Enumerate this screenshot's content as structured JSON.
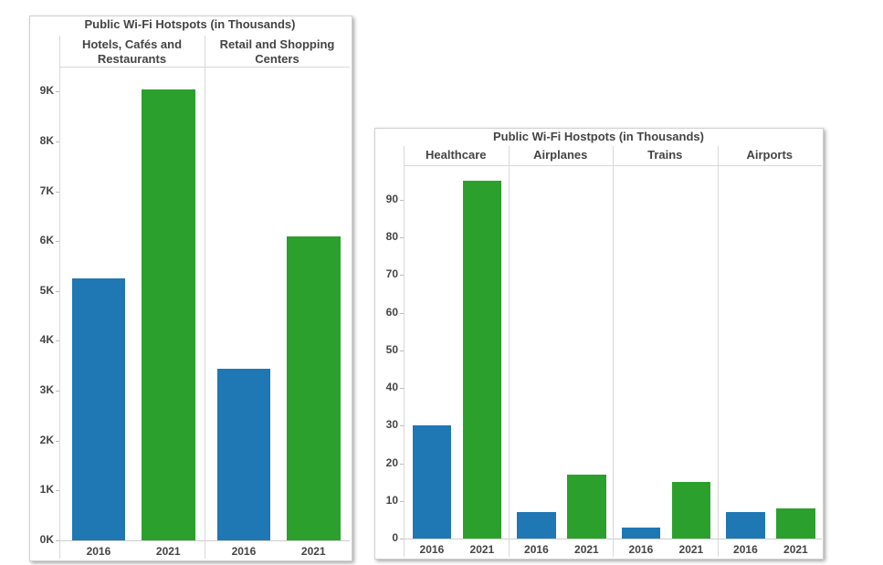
{
  "chart_data": [
    {
      "type": "bar",
      "title": "Public Wi-Fi Hotspots (in Thousands)",
      "categories": [
        "Hotels, Cafés and Restaurants",
        "Retail and Shopping Centers"
      ],
      "x": [
        "2016",
        "2021"
      ],
      "series": [
        {
          "name": "2016",
          "color": "#1f77b4",
          "values": [
            5250,
            3450
          ]
        },
        {
          "name": "2021",
          "color": "#2ca02c",
          "values": [
            9050,
            6100
          ]
        }
      ],
      "yticks": [
        "0K",
        "1K",
        "2K",
        "3K",
        "4K",
        "5K",
        "6K",
        "7K",
        "8K",
        "9K"
      ],
      "ytick_values": [
        0,
        1000,
        2000,
        3000,
        4000,
        5000,
        6000,
        7000,
        8000,
        9000
      ],
      "ylim": [
        0,
        9500
      ],
      "xlabel": "",
      "ylabel": "",
      "grid": false
    },
    {
      "type": "bar",
      "title": "Public Wi-Fi Hostpots (in Thousands)",
      "categories": [
        "Healthcare",
        "Airplanes",
        "Trains",
        "Airports"
      ],
      "x": [
        "2016",
        "2021"
      ],
      "series": [
        {
          "name": "2016",
          "color": "#1f77b4",
          "values": [
            30,
            7,
            3,
            7
          ]
        },
        {
          "name": "2021",
          "color": "#2ca02c",
          "values": [
            95,
            17,
            15,
            8
          ]
        }
      ],
      "yticks": [
        "0",
        "10",
        "20",
        "30",
        "40",
        "50",
        "60",
        "70",
        "80",
        "90"
      ],
      "ytick_values": [
        0,
        10,
        20,
        30,
        40,
        50,
        60,
        70,
        80,
        90
      ],
      "ylim": [
        0,
        98
      ],
      "xlabel": "",
      "ylabel": "",
      "grid": false
    }
  ]
}
